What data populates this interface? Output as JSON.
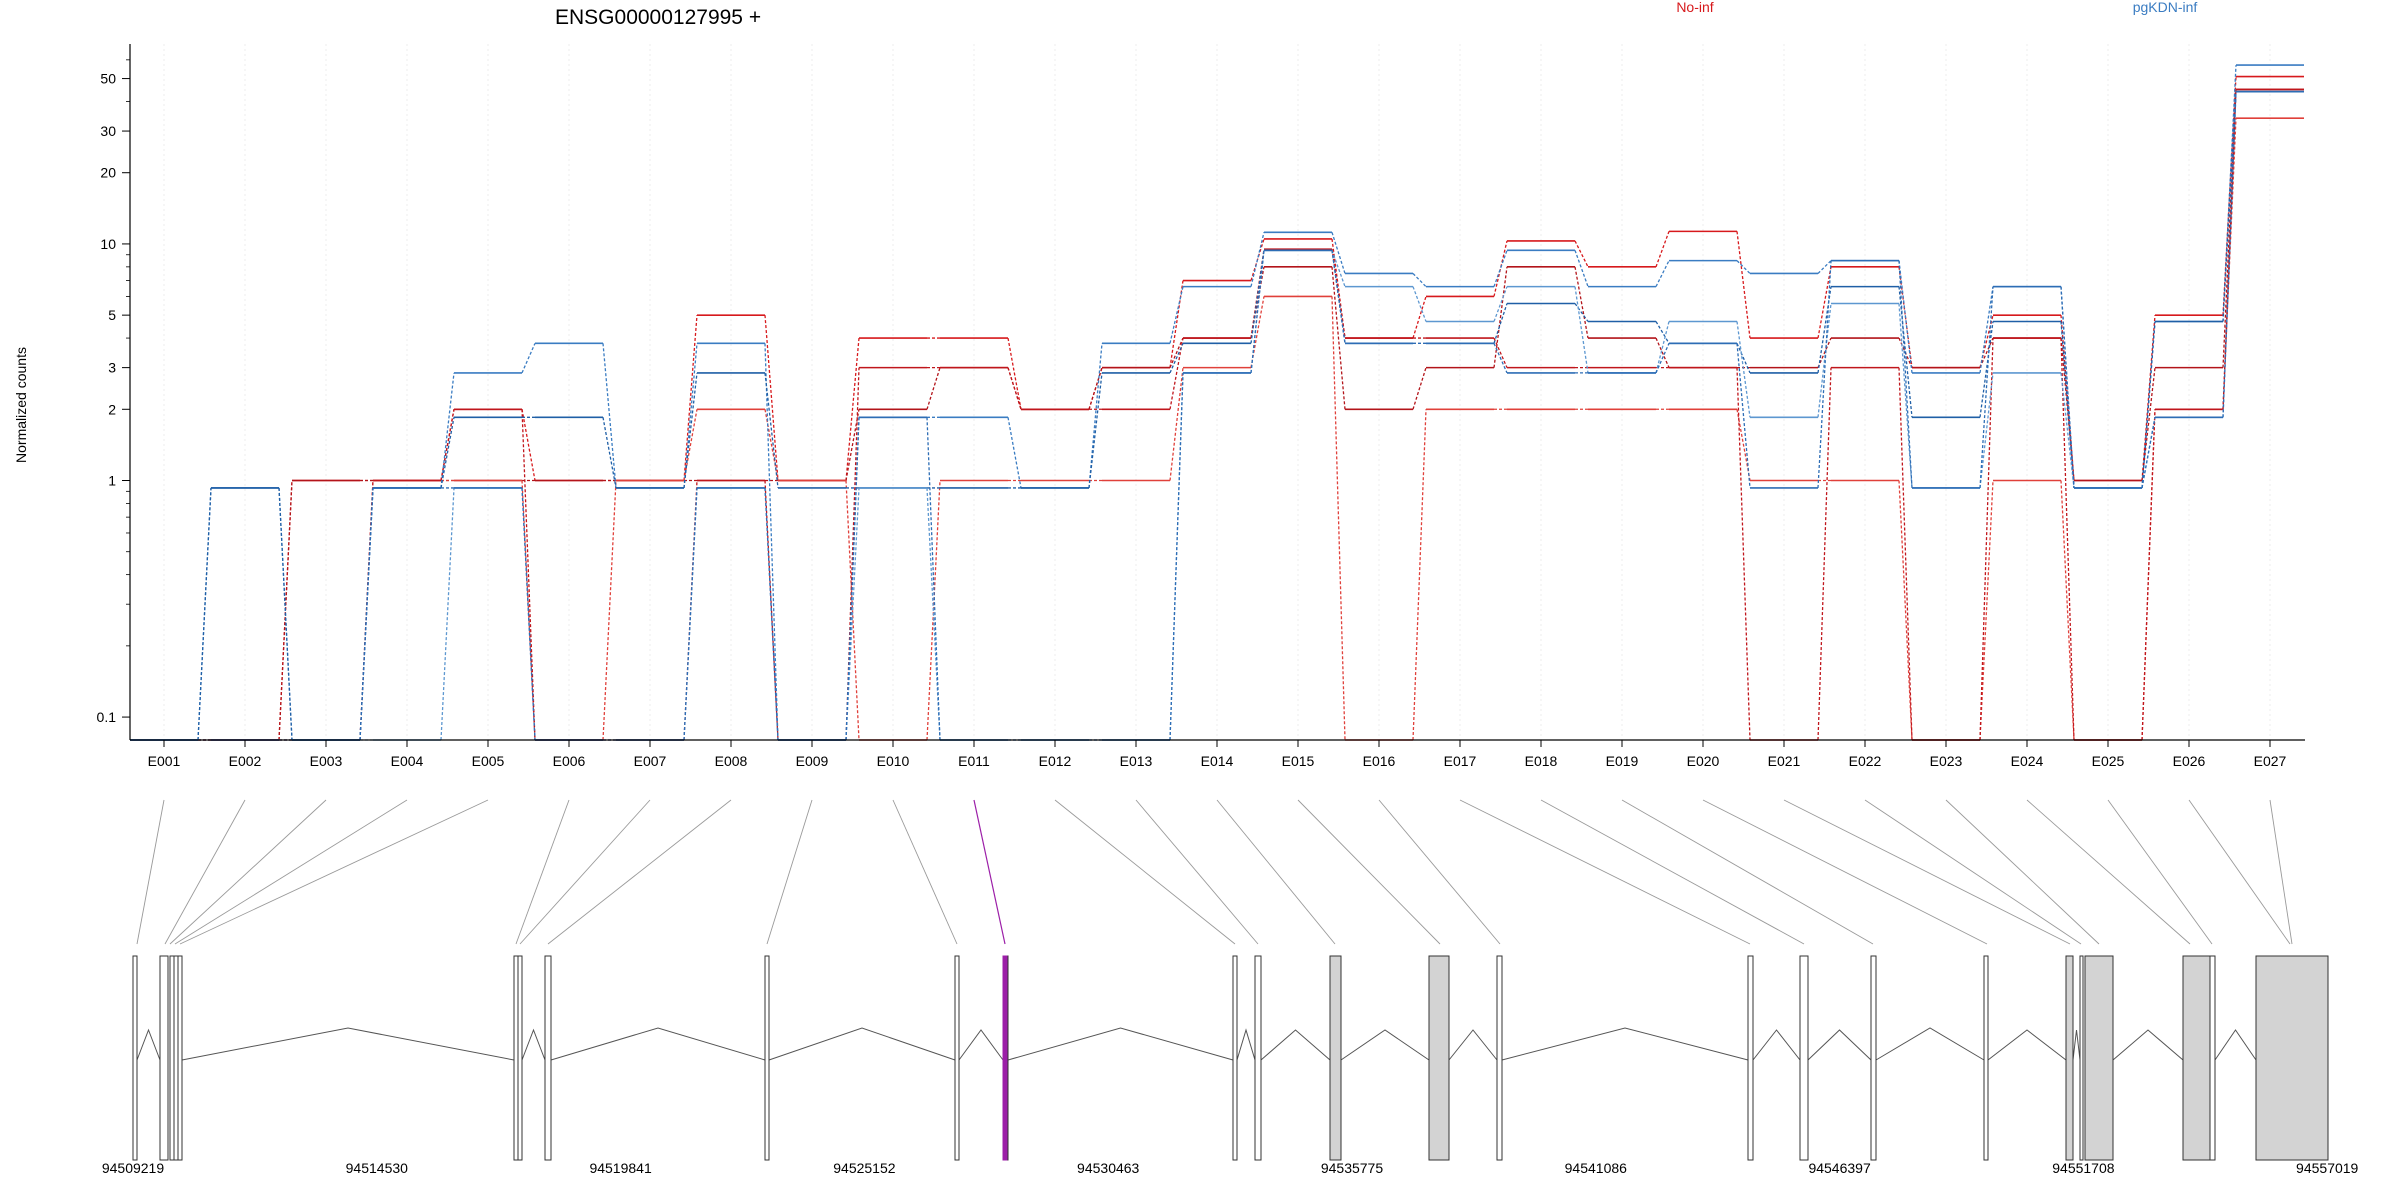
{
  "chart_data": {
    "type": "line",
    "title": "ENSG00000127995 +",
    "ylabel": "Normalized counts",
    "xlabel": "",
    "y_scale": "log",
    "ylim": [
      0.08,
      70
    ],
    "yticks": [
      0.1,
      1,
      2,
      3,
      5,
      10,
      20,
      30,
      50
    ],
    "ytick_labels": [
      "0.1",
      "1",
      "2",
      "3",
      "5",
      "10",
      "20",
      "30",
      "50"
    ],
    "grid": true,
    "legend_placement": "top",
    "categories": [
      "E001",
      "E002",
      "E003",
      "E004",
      "E005",
      "E006",
      "E007",
      "E008",
      "E009",
      "E010",
      "E011",
      "E012",
      "E013",
      "E014",
      "E015",
      "E016",
      "E017",
      "E018",
      "E019",
      "E020",
      "E021",
      "E022",
      "E023",
      "E024",
      "E025",
      "E026",
      "E027"
    ],
    "groups": [
      {
        "name": "No-inf",
        "color": "#d7191c"
      },
      {
        "name": "pgKDN-inf",
        "color": "#3a7cc2"
      }
    ],
    "series": [
      {
        "group": "No-inf",
        "color": "#d7191c",
        "values": [
          0.08,
          0.08,
          1,
          1,
          2,
          1,
          1,
          5,
          1,
          4,
          4,
          2,
          3,
          7,
          10.5,
          4,
          6,
          10.3,
          8,
          11.3,
          4,
          8,
          3,
          5,
          1,
          5,
          51
        ]
      },
      {
        "group": "No-inf",
        "color": "#b3141a",
        "values": [
          0.08,
          0.08,
          1,
          1,
          1,
          1,
          1,
          1,
          1,
          2,
          3,
          2,
          3,
          4,
          8,
          2,
          3,
          8,
          4,
          3,
          3,
          4,
          3,
          4,
          1,
          3,
          45
        ]
      },
      {
        "group": "No-inf",
        "color": "#e0403a",
        "values": [
          0.08,
          0.08,
          0.08,
          1,
          1,
          0.08,
          1,
          2,
          1,
          0.08,
          1,
          1,
          1,
          3,
          6,
          0.08,
          2,
          2,
          2,
          2,
          1,
          1,
          0.08,
          1,
          0.08,
          2,
          34
        ]
      },
      {
        "group": "No-inf",
        "color": "#c0161c",
        "values": [
          0.08,
          0.08,
          0.08,
          1,
          2,
          0.08,
          0.08,
          1,
          0.08,
          3,
          3,
          2,
          2,
          4,
          9.5,
          4,
          4,
          3,
          3,
          3,
          0.08,
          3,
          0.08,
          4,
          0.08,
          2,
          45
        ]
      },
      {
        "group": "pgKDN-inf",
        "color": "#3a7cc2",
        "values": [
          0.08,
          0.93,
          0.08,
          0.93,
          2.85,
          3.8,
          0.93,
          3.8,
          0.08,
          1.85,
          1.85,
          0.93,
          3.8,
          6.6,
          11.2,
          7.5,
          6.6,
          9.4,
          6.6,
          8.5,
          7.5,
          8.5,
          2.85,
          6.6,
          0.93,
          4.7,
          57
        ]
      },
      {
        "group": "pgKDN-inf",
        "color": "#1f5fa6",
        "values": [
          0.08,
          0.93,
          0.08,
          0.93,
          1.85,
          1.85,
          0.93,
          2.85,
          0.93,
          0.93,
          0.93,
          0.93,
          2.85,
          3.8,
          9.4,
          3.8,
          3.8,
          5.6,
          4.7,
          3.8,
          2.85,
          6.6,
          1.85,
          4.7,
          0.93,
          4.7,
          44
        ]
      },
      {
        "group": "pgKDN-inf",
        "color": "#5d97d0",
        "values": [
          0.08,
          0.08,
          0.08,
          0.08,
          0.93,
          0.08,
          0.08,
          0.93,
          0.08,
          0.93,
          0.08,
          0.08,
          0.08,
          2.85,
          9.4,
          6.6,
          4.7,
          6.6,
          2.85,
          4.7,
          1.85,
          5.6,
          0.93,
          2.85,
          0.93,
          1.85,
          44
        ]
      },
      {
        "group": "pgKDN-inf",
        "color": "#2d6db5",
        "values": [
          0.08,
          0.08,
          0.08,
          0.93,
          0.93,
          0.08,
          0.08,
          0.93,
          0.08,
          1.85,
          0.08,
          0.08,
          0.08,
          2.85,
          9.4,
          3.8,
          3.8,
          2.85,
          2.85,
          3.8,
          0.93,
          8.5,
          0.93,
          6.6,
          0.93,
          1.85,
          44
        ]
      }
    ],
    "gene_model": {
      "coordinate_labels": [
        "94509219",
        "94514530",
        "94519841",
        "94525152",
        "94530463",
        "94535775",
        "94541086",
        "94546397",
        "94551708",
        "94557019"
      ],
      "highlighted_exon": "E011",
      "highlight_color": "#9c1fa8",
      "exon_fill": "#d3d3d3",
      "line_color": "#555555"
    }
  }
}
